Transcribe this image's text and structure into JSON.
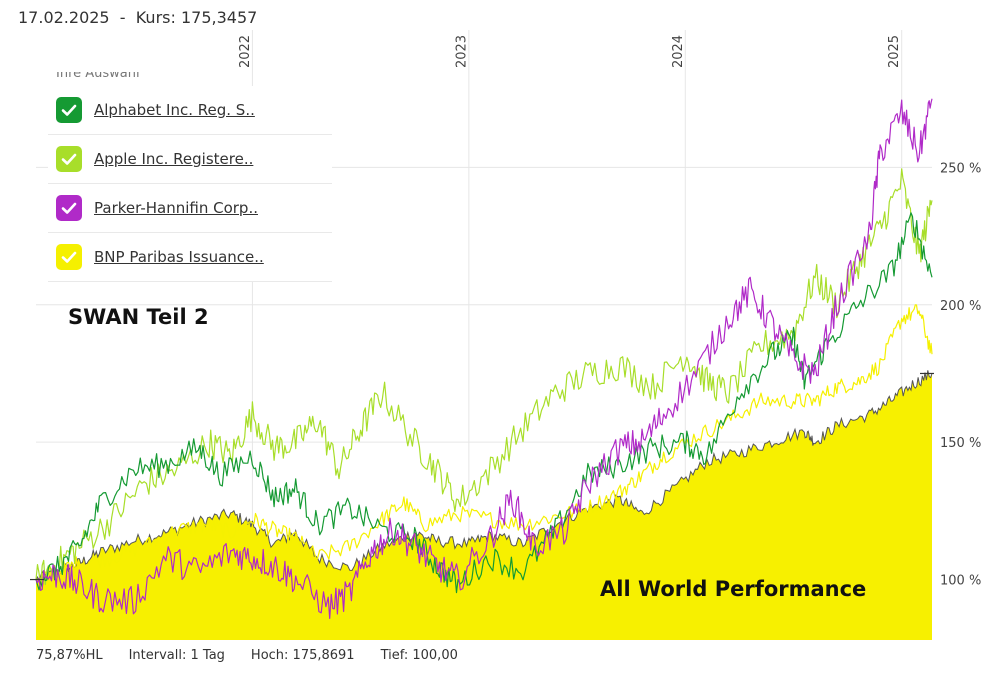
{
  "header": {
    "date": "17.02.2025",
    "separator": "-",
    "kurs_label": "Kurs:",
    "kurs_value": "175,3457"
  },
  "legend": {
    "partial_label": "Ihre Auswahl",
    "items": [
      {
        "label": "Alphabet Inc. Reg. S..",
        "color": "#159a33"
      },
      {
        "label": "Apple Inc. Registere..",
        "color": "#a8de2a"
      },
      {
        "label": "Parker-Hannifin Corp..",
        "color": "#b02ac8"
      },
      {
        "label": "BNP Paribas Issuance..",
        "color": "#f5f000"
      }
    ]
  },
  "footer": {
    "hl": "75,87%HL",
    "intervall": "Intervall: 1 Tag",
    "hoch": "Hoch: 175,8691",
    "tief": "Tief:  100,00"
  },
  "colors": {
    "area_fill": "#f7f000",
    "area_line": "#555555",
    "grid": "#e6e6e6"
  },
  "chart_data": {
    "type": "line",
    "title": "",
    "annotations": [
      "SWAN Teil 2",
      "All World Performance"
    ],
    "x_ticks": [
      {
        "label": "2022",
        "x": 2022.0
      },
      {
        "label": "2023",
        "x": 2023.0
      },
      {
        "label": "2024",
        "x": 2024.0
      },
      {
        "label": "2025",
        "x": 2025.0
      }
    ],
    "xlim": [
      2021.0,
      2025.14
    ],
    "ylim": [
      78,
      300
    ],
    "y_ticks": [
      {
        "label": "100 %",
        "value": 100
      },
      {
        "label": "150 %",
        "value": 150
      },
      {
        "label": "200 %",
        "value": 200
      },
      {
        "label": "250 %",
        "value": 250
      }
    ],
    "series": [
      {
        "name": "All World Performance",
        "kind": "area",
        "x": [
          2021.0,
          2021.1,
          2021.2,
          2021.3,
          2021.45,
          2021.6,
          2021.75,
          2021.9,
          2022.0,
          2022.1,
          2022.2,
          2022.3,
          2022.45,
          2022.6,
          2022.75,
          2022.85,
          2023.0,
          2023.1,
          2023.25,
          2023.4,
          2023.55,
          2023.7,
          2023.8,
          2023.95,
          2024.1,
          2024.25,
          2024.4,
          2024.55,
          2024.6,
          2024.7,
          2024.85,
          2024.95,
          2025.05,
          2025.14
        ],
        "values": [
          100,
          103,
          106,
          110,
          114,
          117,
          121,
          124,
          120,
          113,
          117,
          108,
          104,
          112,
          117,
          114,
          113,
          116,
          113,
          120,
          126,
          129,
          124,
          133,
          143,
          146,
          150,
          154,
          150,
          156,
          160,
          165,
          171,
          175
        ]
      },
      {
        "name": "Alphabet Inc. Reg. S..",
        "x": [
          2021.0,
          2021.1,
          2021.2,
          2021.3,
          2021.45,
          2021.6,
          2021.75,
          2021.85,
          2022.0,
          2022.1,
          2022.2,
          2022.3,
          2022.45,
          2022.6,
          2022.75,
          2022.85,
          2022.95,
          2023.1,
          2023.25,
          2023.4,
          2023.55,
          2023.7,
          2023.85,
          2024.0,
          2024.1,
          2024.25,
          2024.4,
          2024.5,
          2024.55,
          2024.65,
          2024.8,
          2024.95,
          2025.05,
          2025.14
        ],
        "values": [
          100,
          104,
          112,
          128,
          140,
          142,
          148,
          138,
          145,
          130,
          133,
          120,
          126,
          118,
          115,
          105,
          98,
          108,
          103,
          118,
          138,
          142,
          148,
          150,
          145,
          168,
          182,
          188,
          172,
          185,
          200,
          212,
          232,
          210
        ]
      },
      {
        "name": "Apple Inc. Registere..",
        "x": [
          2021.0,
          2021.1,
          2021.2,
          2021.35,
          2021.5,
          2021.65,
          2021.8,
          2021.9,
          2022.0,
          2022.1,
          2022.2,
          2022.3,
          2022.4,
          2022.5,
          2022.6,
          2022.75,
          2022.85,
          2022.95,
          2023.1,
          2023.25,
          2023.4,
          2023.55,
          2023.7,
          2023.85,
          2024.0,
          2024.1,
          2024.2,
          2024.35,
          2024.5,
          2024.6,
          2024.7,
          2024.8,
          2024.9,
          2025.0,
          2025.08,
          2025.14
        ],
        "values": [
          100,
          106,
          112,
          122,
          135,
          140,
          150,
          145,
          160,
          148,
          150,
          158,
          140,
          155,
          168,
          150,
          140,
          128,
          140,
          155,
          168,
          175,
          178,
          170,
          182,
          172,
          168,
          185,
          190,
          210,
          200,
          215,
          228,
          245,
          218,
          238
        ]
      },
      {
        "name": "Parker-Hannifin Corp..",
        "x": [
          2021.0,
          2021.1,
          2021.2,
          2021.3,
          2021.45,
          2021.6,
          2021.75,
          2021.9,
          2022.0,
          2022.1,
          2022.2,
          2022.35,
          2022.45,
          2022.55,
          2022.65,
          2022.75,
          2022.85,
          2022.95,
          2023.1,
          2023.2,
          2023.3,
          2023.45,
          2023.55,
          2023.7,
          2023.8,
          2023.9,
          2024.05,
          2024.2,
          2024.3,
          2024.4,
          2024.5,
          2024.6,
          2024.7,
          2024.85,
          2024.9,
          2025.0,
          2025.08,
          2025.14
        ],
        "values": [
          100,
          102,
          98,
          93,
          92,
          108,
          103,
          110,
          108,
          105,
          100,
          90,
          95,
          110,
          118,
          112,
          105,
          100,
          115,
          130,
          112,
          118,
          135,
          148,
          150,
          160,
          175,
          195,
          205,
          193,
          180,
          175,
          200,
          225,
          255,
          270,
          255,
          275
        ]
      },
      {
        "name": "BNP Paribas Issuance..",
        "x": [
          2021.0,
          2021.1,
          2021.2,
          2021.35,
          2021.5,
          2021.65,
          2021.8,
          2021.9,
          2022.0,
          2022.1,
          2022.2,
          2022.3,
          2022.45,
          2022.6,
          2022.7,
          2022.8,
          2022.95,
          2023.1,
          2023.25,
          2023.4,
          2023.55,
          2023.7,
          2023.8,
          2023.9,
          2024.05,
          2024.2,
          2024.35,
          2024.5,
          2024.6,
          2024.7,
          2024.8,
          2024.9,
          2025.0,
          2025.08,
          2025.14
        ],
        "values": [
          100,
          103,
          106,
          108,
          112,
          118,
          120,
          117,
          122,
          118,
          115,
          108,
          112,
          122,
          128,
          120,
          124,
          122,
          120,
          123,
          126,
          132,
          138,
          145,
          152,
          158,
          165,
          165,
          165,
          170,
          172,
          178,
          195,
          198,
          182
        ]
      }
    ]
  }
}
